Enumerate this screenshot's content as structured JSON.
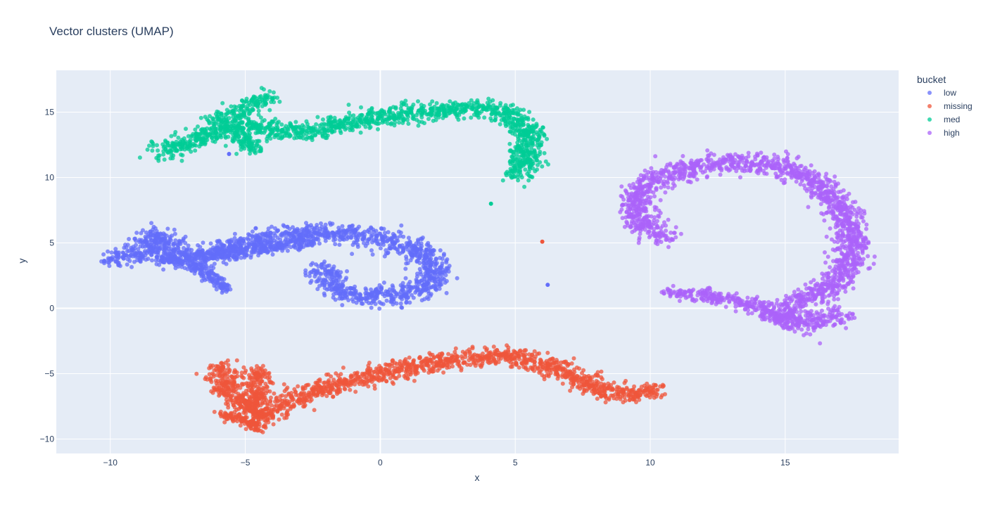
{
  "chart_data": {
    "type": "scatter",
    "title": "Vector clusters (UMAP)",
    "xlabel": "x",
    "ylabel": "y",
    "xlim": [
      -12,
      19.2
    ],
    "ylim": [
      -11.1,
      18.2
    ],
    "xticks": [
      -10,
      -5,
      0,
      5,
      10,
      15
    ],
    "yticks": [
      -10,
      -5,
      0,
      5,
      10,
      15
    ],
    "xtick_labels": [
      "−10",
      "−5",
      "0",
      "5",
      "10",
      "15"
    ],
    "ytick_labels": [
      "−10",
      "−5",
      "0",
      "5",
      "10",
      "15"
    ],
    "legend_title": "bucket",
    "legend_position": "right",
    "grid": true,
    "colors": {
      "plot_bg": "#e5ecf6",
      "grid": "#ffffff",
      "text": "#2a3f5f"
    },
    "series": [
      {
        "name": "low",
        "color": "#636efa",
        "path": [
          [
            -10.1,
            3.8
          ],
          [
            -9.3,
            4.0
          ],
          [
            -8.6,
            4.6
          ],
          [
            -8.2,
            5.6
          ],
          [
            -7.6,
            4.0
          ],
          [
            -6.7,
            3.8
          ],
          [
            -5.8,
            4.7
          ],
          [
            -4.6,
            5.2
          ],
          [
            -3.4,
            5.6
          ],
          [
            -2.2,
            5.8
          ],
          [
            -0.8,
            5.6
          ],
          [
            0.6,
            5.0
          ],
          [
            1.6,
            4.2
          ],
          [
            2.0,
            3.0
          ],
          [
            1.8,
            1.7
          ],
          [
            1.0,
            1.1
          ],
          [
            0.0,
            0.9
          ],
          [
            -1.0,
            1.1
          ],
          [
            -1.8,
            1.8
          ],
          [
            -2.1,
            3.2
          ]
        ],
        "spread": 0.33,
        "branches": [
          {
            "path": [
              [
                -8.2,
                3.9
              ],
              [
                -7.2,
                3.5
              ],
              [
                -6.5,
                2.7
              ],
              [
                -6.0,
                2.1
              ],
              [
                -5.8,
                1.5
              ]
            ],
            "spread": 0.17
          },
          {
            "path": [
              [
                -6.8,
                4.1
              ],
              [
                -5.8,
                4.0
              ],
              [
                -4.8,
                4.4
              ],
              [
                -3.5,
                4.9
              ],
              [
                -2.4,
                5.2
              ]
            ],
            "spread": 0.2
          }
        ],
        "outliers": [
          [
            6.2,
            1.8
          ],
          [
            -5.6,
            11.8
          ]
        ]
      },
      {
        "name": "missing",
        "color": "#ef553b",
        "path": [
          [
            -5.9,
            -4.4
          ],
          [
            -5.7,
            -6.2
          ],
          [
            -5.0,
            -7.4
          ],
          [
            -4.4,
            -8.3
          ],
          [
            -3.2,
            -7.0
          ],
          [
            -2.0,
            -6.0
          ],
          [
            -0.8,
            -5.4
          ],
          [
            0.4,
            -4.8
          ],
          [
            1.8,
            -4.3
          ],
          [
            3.2,
            -3.8
          ],
          [
            4.4,
            -3.6
          ],
          [
            5.6,
            -4.0
          ],
          [
            6.6,
            -4.6
          ],
          [
            7.5,
            -5.6
          ],
          [
            8.4,
            -6.5
          ],
          [
            9.4,
            -6.6
          ],
          [
            10.3,
            -6.2
          ]
        ],
        "spread": 0.3,
        "branches": [
          {
            "path": [
              [
                -5.9,
                -8.1
              ],
              [
                -5.0,
                -8.6
              ],
              [
                -4.4,
                -9.2
              ]
            ],
            "spread": 0.15
          },
          {
            "path": [
              [
                -4.6,
                -4.7
              ],
              [
                -4.5,
                -6.3
              ],
              [
                -4.7,
                -8.0
              ]
            ],
            "spread": 0.25
          }
        ],
        "outliers": [
          [
            6.0,
            5.1
          ]
        ]
      },
      {
        "name": "med",
        "color": "#00cc96",
        "path": [
          [
            -8.2,
            11.9
          ],
          [
            -7.3,
            12.5
          ],
          [
            -6.2,
            13.4
          ],
          [
            -5.2,
            14.0
          ],
          [
            -4.0,
            13.6
          ],
          [
            -2.6,
            13.5
          ],
          [
            -1.2,
            14.2
          ],
          [
            0.2,
            14.7
          ],
          [
            1.6,
            15.0
          ],
          [
            3.0,
            15.2
          ],
          [
            3.8,
            15.3
          ],
          [
            4.8,
            14.7
          ],
          [
            5.5,
            13.6
          ],
          [
            5.5,
            12.3
          ],
          [
            5.3,
            11.0
          ],
          [
            5.0,
            10.0
          ]
        ],
        "spread": 0.3,
        "branches": [
          {
            "path": [
              [
                -6.2,
                14.0
              ],
              [
                -5.3,
                14.9
              ],
              [
                -4.6,
                15.6
              ],
              [
                -4.3,
                16.3
              ]
            ],
            "spread": 0.28
          },
          {
            "path": [
              [
                -5.2,
                13.2
              ],
              [
                -4.8,
                12.5
              ],
              [
                -4.6,
                12.0
              ]
            ],
            "spread": 0.2
          }
        ],
        "outliers": [
          [
            4.1,
            8.0
          ]
        ]
      },
      {
        "name": "high",
        "color": "#ab63fa",
        "path": [
          [
            10.6,
            5.4
          ],
          [
            9.8,
            6.3
          ],
          [
            9.4,
            7.5
          ],
          [
            9.5,
            8.8
          ],
          [
            10.3,
            9.9
          ],
          [
            11.6,
            10.8
          ],
          [
            13.2,
            11.2
          ],
          [
            14.6,
            11.0
          ],
          [
            15.7,
            10.2
          ],
          [
            16.6,
            8.8
          ],
          [
            17.2,
            7.2
          ],
          [
            17.5,
            5.2
          ],
          [
            17.3,
            3.2
          ],
          [
            16.8,
            1.8
          ],
          [
            15.8,
            0.7
          ],
          [
            14.8,
            -0.4
          ],
          [
            15.4,
            -1.2
          ],
          [
            16.4,
            -0.9
          ],
          [
            17.2,
            -0.5
          ]
        ],
        "spread": 0.33,
        "branches": [
          {
            "path": [
              [
                10.8,
                1.2
              ],
              [
                12.0,
                1.0
              ],
              [
                13.2,
                0.6
              ],
              [
                14.3,
                -0.2
              ],
              [
                14.9,
                -1.0
              ]
            ],
            "spread": 0.22
          }
        ],
        "outliers": []
      }
    ]
  }
}
